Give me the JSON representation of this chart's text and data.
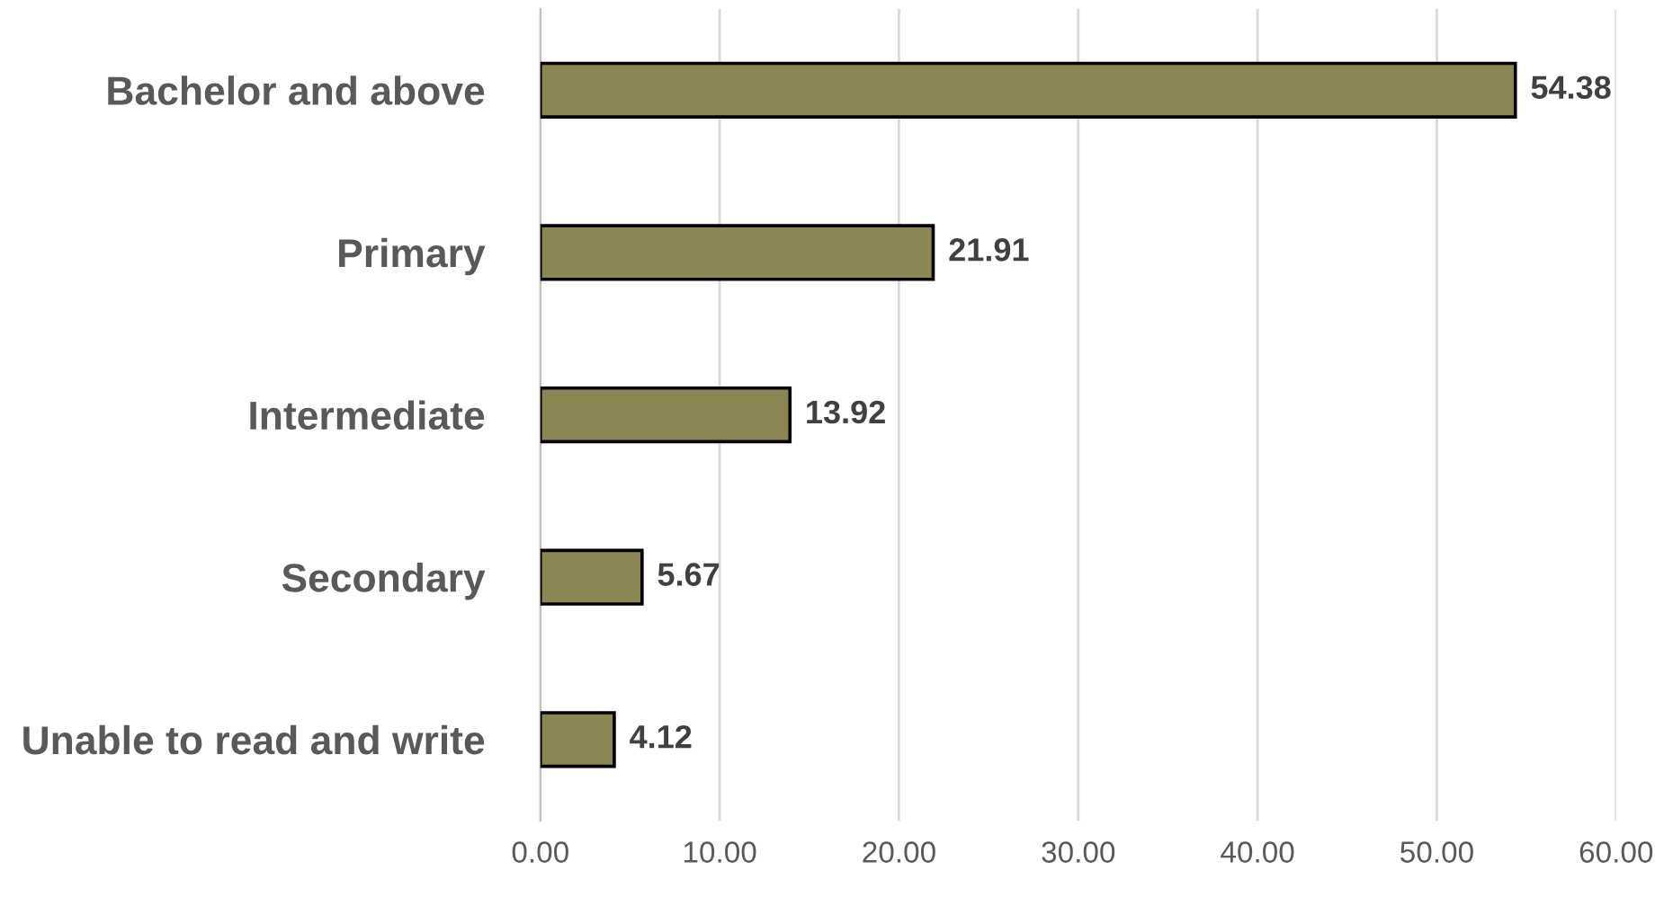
{
  "chart_data": {
    "type": "bar",
    "orientation": "horizontal",
    "categories": [
      "Bachelor and above",
      "Primary",
      "Intermediate",
      "Secondary",
      "Unable to read and write"
    ],
    "values": [
      54.38,
      21.91,
      13.92,
      5.67,
      4.12
    ],
    "color": "#8c8554",
    "data_labels": true,
    "xlim": [
      0,
      60
    ],
    "xticks": [
      {
        "value": 0,
        "label": "0.00"
      },
      {
        "value": 10,
        "label": "10.00"
      },
      {
        "value": 20,
        "label": "20.00"
      },
      {
        "value": 30,
        "label": "30.00"
      },
      {
        "value": 40,
        "label": "40.00"
      },
      {
        "value": 50,
        "label": "50.00"
      },
      {
        "value": 60,
        "label": "60.00"
      }
    ],
    "grid": "x"
  }
}
